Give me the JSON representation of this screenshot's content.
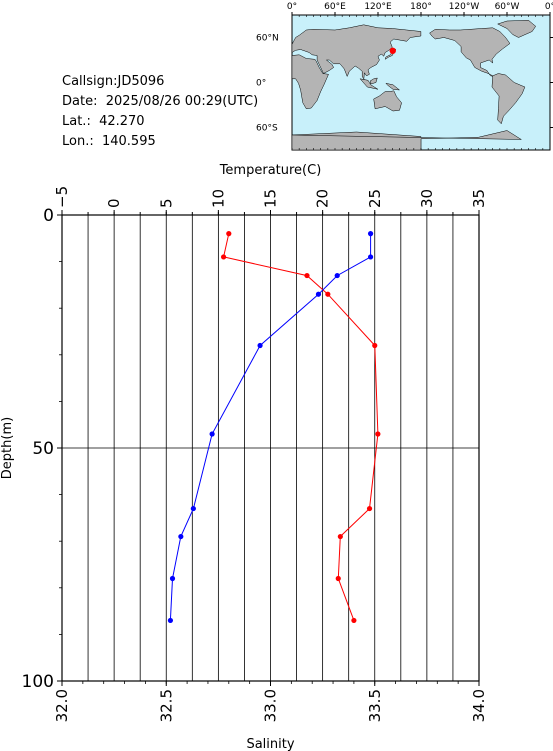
{
  "info": {
    "callsign": "Callsign:JD5096",
    "date": "Date:  2025/08/26 00:29(UTC)",
    "lat": "Lat.:  42.270",
    "lon": "Lon.:  140.595"
  },
  "map": {
    "top_labels": [
      "0°",
      "60°E",
      "120°E",
      "180°",
      "120°W",
      "60°W",
      "0°"
    ],
    "left_labels": [
      "60°N",
      "0°",
      "60°S"
    ],
    "ocean_color": "#c8f0fa",
    "land_color": "#b4b4b4",
    "marker_color": "#ff0000",
    "marker": {
      "lat": 42.27,
      "lon": 140.595
    }
  },
  "chart_data": {
    "type": "line",
    "ylabel": "Depth(m)",
    "ylim": [
      0,
      100
    ],
    "y_ticks": [
      0,
      50,
      100
    ],
    "y_reversed": true,
    "top_axis": {
      "label": "Temperature(C)",
      "range": [
        -5,
        35
      ],
      "ticks": [
        -5,
        0,
        5,
        10,
        15,
        20,
        25,
        30,
        35
      ],
      "tick_labels": [
        "−5",
        "0",
        "5",
        "10",
        "15",
        "20",
        "25",
        "30",
        "35"
      ]
    },
    "bottom_axis": {
      "label": "Salinity",
      "range": [
        32.0,
        34.0
      ],
      "ticks": [
        32.0,
        32.5,
        33.0,
        33.5,
        34.0
      ],
      "tick_labels": [
        "32.0",
        "32.5",
        "33.0",
        "33.5",
        "34.0"
      ]
    },
    "grid": "vertical lines every 2.5 °C; horizontal line at 50 m",
    "series": [
      {
        "axis": "temperature",
        "color": "#ff0000",
        "points": [
          {
            "x": 11.0,
            "y": 4
          },
          {
            "x": 10.5,
            "y": 9
          },
          {
            "x": 18.5,
            "y": 13
          },
          {
            "x": 20.5,
            "y": 17
          },
          {
            "x": 25.0,
            "y": 28
          },
          {
            "x": 25.3,
            "y": 47
          },
          {
            "x": 24.5,
            "y": 63
          },
          {
            "x": 21.7,
            "y": 69
          },
          {
            "x": 21.5,
            "y": 78
          },
          {
            "x": 23.0,
            "y": 87
          }
        ]
      },
      {
        "axis": "salinity",
        "color": "#0000ff",
        "points": [
          {
            "x": 33.48,
            "y": 4
          },
          {
            "x": 33.48,
            "y": 9
          },
          {
            "x": 33.32,
            "y": 13
          },
          {
            "x": 33.23,
            "y": 17
          },
          {
            "x": 32.95,
            "y": 28
          },
          {
            "x": 32.72,
            "y": 47
          },
          {
            "x": 32.63,
            "y": 63
          },
          {
            "x": 32.57,
            "y": 69
          },
          {
            "x": 32.53,
            "y": 78
          },
          {
            "x": 32.52,
            "y": 87
          }
        ]
      }
    ]
  }
}
